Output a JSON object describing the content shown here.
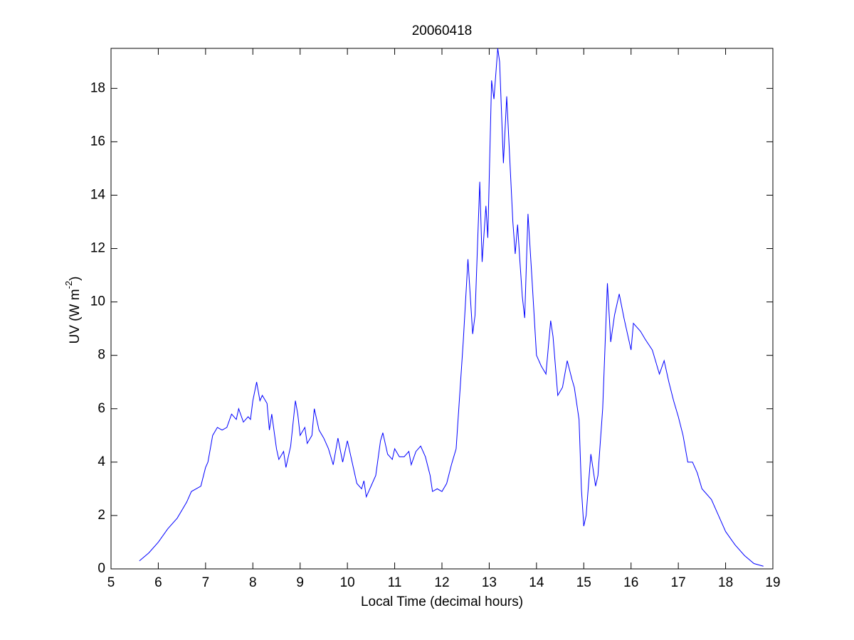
{
  "chart_data": {
    "type": "line",
    "title": "20060418",
    "xlabel": "Local Time (decimal hours)",
    "ylabel": {
      "text": "UV (W m",
      "superscript": "-2",
      "suffix": ")"
    },
    "xlim": [
      5,
      19
    ],
    "ylim": [
      0,
      19.5
    ],
    "xticks": [
      5,
      6,
      7,
      8,
      9,
      10,
      11,
      12,
      13,
      14,
      15,
      16,
      17,
      18,
      19
    ],
    "yticks": [
      0,
      2,
      4,
      6,
      8,
      10,
      12,
      14,
      16,
      18
    ],
    "grid": false,
    "series": [
      {
        "color": "#0000ff",
        "x": [
          5.6,
          5.8,
          6.0,
          6.2,
          6.4,
          6.6,
          6.7,
          6.8,
          6.9,
          7.0,
          7.05,
          7.15,
          7.25,
          7.35,
          7.45,
          7.55,
          7.65,
          7.7,
          7.8,
          7.9,
          7.95,
          8.0,
          8.08,
          8.15,
          8.2,
          8.3,
          8.35,
          8.4,
          8.5,
          8.55,
          8.65,
          8.7,
          8.8,
          8.9,
          8.95,
          9.0,
          9.1,
          9.15,
          9.25,
          9.3,
          9.4,
          9.5,
          9.6,
          9.7,
          9.8,
          9.9,
          10.0,
          10.1,
          10.2,
          10.3,
          10.35,
          10.4,
          10.5,
          10.6,
          10.7,
          10.75,
          10.85,
          10.95,
          11.0,
          11.1,
          11.2,
          11.3,
          11.35,
          11.45,
          11.55,
          11.65,
          11.75,
          11.8,
          11.9,
          12.0,
          12.1,
          12.2,
          12.3,
          12.45,
          12.55,
          12.65,
          12.7,
          12.8,
          12.85,
          12.93,
          12.97,
          13.05,
          13.1,
          13.18,
          13.22,
          13.3,
          13.37,
          13.5,
          13.55,
          13.6,
          13.65,
          13.7,
          13.75,
          13.82,
          13.9,
          14.0,
          14.1,
          14.2,
          14.3,
          14.35,
          14.45,
          14.55,
          14.65,
          14.75,
          14.8,
          14.9,
          14.95,
          15.0,
          15.05,
          15.15,
          15.25,
          15.3,
          15.4,
          15.5,
          15.57,
          15.65,
          15.75,
          15.85,
          16.0,
          16.05,
          16.2,
          16.3,
          16.45,
          16.6,
          16.7,
          16.8,
          16.9,
          17.0,
          17.1,
          17.2,
          17.3,
          17.4,
          17.5,
          17.7,
          17.9,
          18.0,
          18.2,
          18.4,
          18.6,
          18.8
        ],
        "values": [
          0.3,
          0.6,
          1.0,
          1.5,
          1.9,
          2.5,
          2.9,
          3.0,
          3.1,
          3.8,
          4.0,
          5.0,
          5.3,
          5.2,
          5.3,
          5.8,
          5.6,
          6.0,
          5.5,
          5.7,
          5.6,
          6.3,
          7.0,
          6.3,
          6.5,
          6.2,
          5.2,
          5.8,
          4.5,
          4.1,
          4.4,
          3.8,
          4.6,
          6.3,
          5.8,
          5.0,
          5.3,
          4.7,
          5.0,
          6.0,
          5.2,
          4.9,
          4.5,
          3.9,
          4.9,
          4.0,
          4.8,
          4.0,
          3.2,
          3.0,
          3.3,
          2.7,
          3.1,
          3.5,
          4.8,
          5.1,
          4.3,
          4.1,
          4.5,
          4.2,
          4.2,
          4.4,
          3.9,
          4.4,
          4.6,
          4.2,
          3.5,
          2.9,
          3.0,
          2.9,
          3.2,
          3.9,
          4.5,
          8.5,
          11.6,
          8.8,
          9.5,
          14.5,
          11.5,
          13.6,
          12.4,
          18.3,
          17.6,
          19.5,
          19.0,
          15.2,
          17.7,
          13.0,
          11.8,
          12.9,
          11.5,
          10.2,
          9.4,
          13.3,
          11.0,
          8.0,
          7.6,
          7.3,
          9.3,
          8.7,
          6.5,
          6.8,
          7.8,
          7.1,
          6.8,
          5.6,
          3.0,
          1.6,
          2.0,
          4.3,
          3.1,
          3.5,
          6.0,
          10.7,
          8.5,
          9.5,
          10.3,
          9.4,
          8.2,
          9.2,
          8.9,
          8.6,
          8.2,
          7.3,
          7.8,
          7.0,
          6.3,
          5.7,
          5.0,
          4.0,
          4.0,
          3.6,
          3.0,
          2.6,
          1.8,
          1.4,
          0.9,
          0.5,
          0.2,
          0.1
        ]
      }
    ]
  }
}
